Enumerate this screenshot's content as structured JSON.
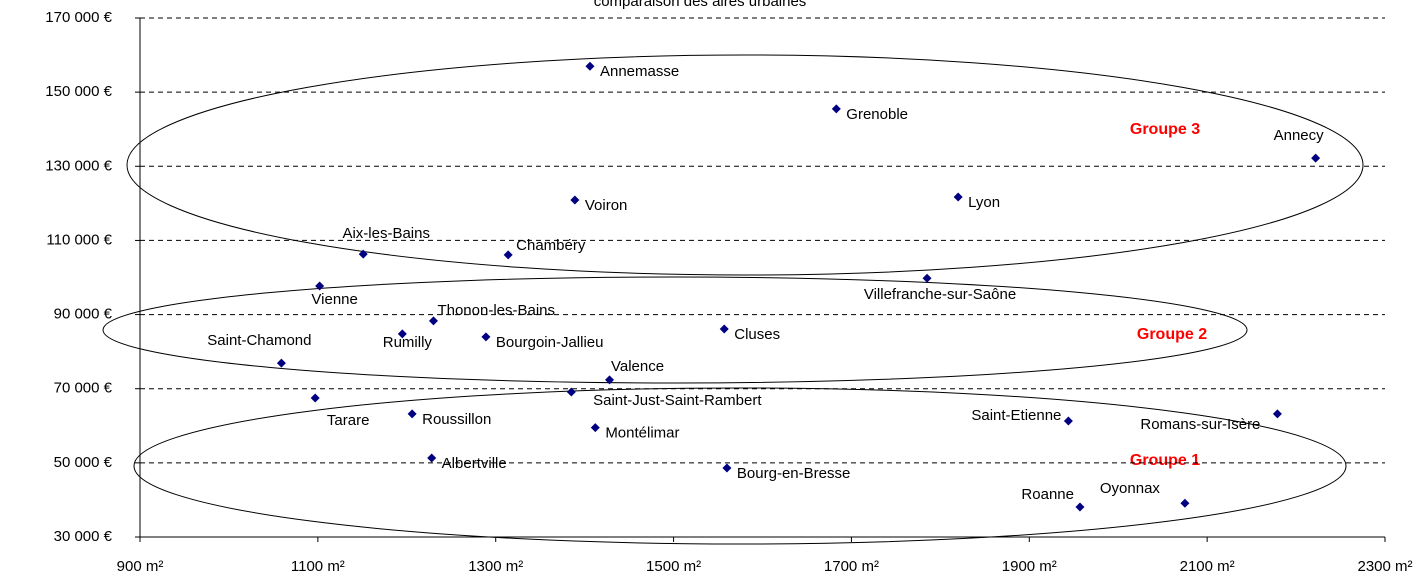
{
  "chart_data": {
    "type": "scatter",
    "title": "comparaison des aires urbaines",
    "xlim": [
      900,
      2300
    ],
    "xticks": [
      {
        "value": 900,
        "label": "900 m²"
      },
      {
        "value": 1100,
        "label": "1100 m²"
      },
      {
        "value": 1300,
        "label": "1300 m²"
      },
      {
        "value": 1500,
        "label": "1500 m²"
      },
      {
        "value": 1700,
        "label": "1700 m²"
      },
      {
        "value": 1900,
        "label": "1900 m²"
      },
      {
        "value": 2100,
        "label": "2100 m²"
      },
      {
        "value": 2300,
        "label": "2300 m²"
      }
    ],
    "ylim": [
      30000,
      170000
    ],
    "yticks": [
      {
        "value": 30000,
        "label": "30 000 €"
      },
      {
        "value": 50000,
        "label": "50 000 €"
      },
      {
        "value": 70000,
        "label": "70 000 €"
      },
      {
        "value": 90000,
        "label": "90 000 €"
      },
      {
        "value": 110000,
        "label": "110 000 €"
      },
      {
        "value": 130000,
        "label": "130 000 €"
      },
      {
        "value": 150000,
        "label": "150 000 €"
      },
      {
        "value": 170000,
        "label": "170 000 €"
      }
    ],
    "grid": true,
    "color": "#000080",
    "labels": [
      "Annemasse",
      "Grenoble",
      "Annecy",
      "Voiron",
      "Lyon",
      "Aix-les-Bains",
      "Chambéry",
      "Vienne",
      "Villefranche-sur-Saône",
      "Thonon-les-Bains",
      "Rumilly",
      "Bourgoin-Jallieu",
      "Cluses",
      "Saint-Chamond",
      "Valence",
      "Saint-Just-Saint-Rambert",
      "Tarare",
      "Roussillon",
      "Saint-Etienne",
      "Romans-sur-Isère",
      "Montélimar",
      "Albertville",
      "Bourg-en-Bresse",
      "Roanne",
      "Oyonnax"
    ],
    "x": [
      1406,
      1683,
      2222,
      1389,
      1820,
      1151,
      1314,
      1102,
      1785,
      1230,
      1195,
      1289,
      1557,
      1059,
      1428,
      1385,
      1097,
      1206,
      1944,
      2179,
      1412,
      1228,
      1560,
      1957,
      2075
    ],
    "values": [
      157000,
      145500,
      132200,
      120900,
      121700,
      106300,
      106100,
      97700,
      99800,
      88300,
      84800,
      84000,
      86100,
      76900,
      72400,
      69100,
      67500,
      63200,
      61300,
      63200,
      59500,
      51300,
      48600,
      38100,
      39100
    ],
    "annotations": [
      "Groupe 3",
      "Groupe 2",
      "Groupe 1"
    ]
  }
}
